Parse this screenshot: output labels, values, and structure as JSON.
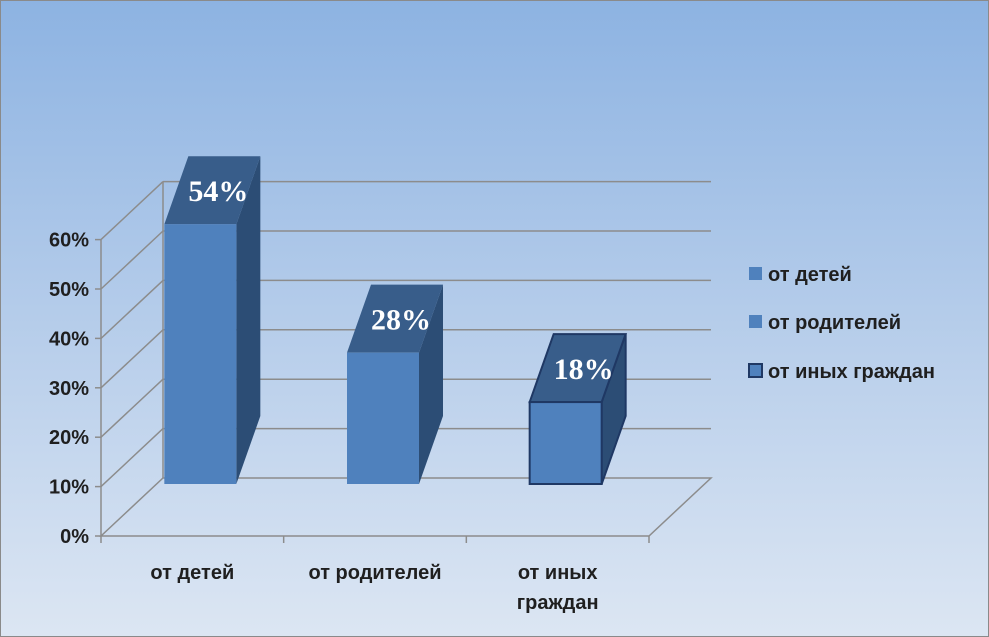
{
  "chart_data": {
    "type": "bar",
    "categories": [
      "от детей",
      "от родителей",
      "от иных граждан"
    ],
    "category_labels": [
      [
        "от детей"
      ],
      [
        "от родителей"
      ],
      [
        "от иных",
        "граждан"
      ]
    ],
    "values": [
      54,
      28,
      18
    ],
    "data_labels": [
      "54%",
      "28%",
      "18%"
    ],
    "y_ticks": [
      "0%",
      "10%",
      "20%",
      "30%",
      "40%",
      "50%",
      "60%"
    ],
    "ylim": [
      0,
      60
    ],
    "grid": true,
    "three_d": true,
    "legend_position": "right",
    "legend": [
      "от детей",
      "от родителей",
      "от иных граждан"
    ],
    "colors": {
      "front": "#4f81bd",
      "top": "#385d8a",
      "side": "#2c4d75",
      "gridline": "#8c8c8c",
      "bar3_outline": "#1f3864"
    }
  }
}
